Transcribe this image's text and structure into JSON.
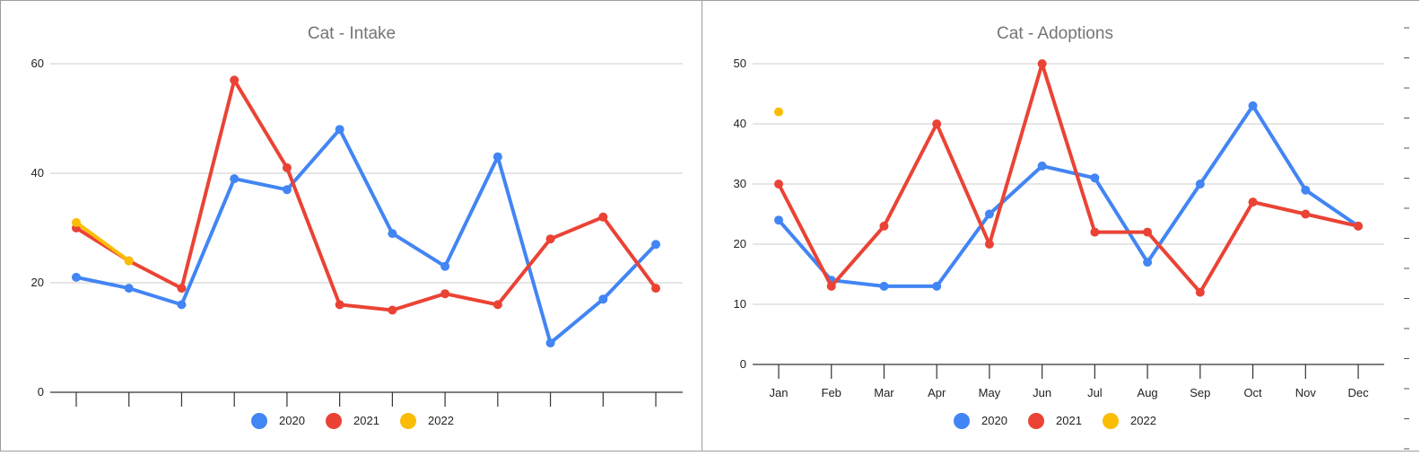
{
  "colors": {
    "2020": "#4285f4",
    "2021": "#ea4335",
    "2022": "#fbbc04"
  },
  "chart_data": [
    {
      "type": "line",
      "title": "Cat - Intake",
      "categories": [
        "",
        "",
        "",
        "",
        "",
        "",
        "",
        "",
        "",
        "",
        "",
        ""
      ],
      "ylim": [
        0,
        60
      ],
      "yticks": [
        0,
        20,
        40,
        60
      ],
      "grid": true,
      "legend": "bottom",
      "series": [
        {
          "name": "2020",
          "values": [
            21,
            19,
            16,
            39,
            37,
            48,
            29,
            23,
            43,
            9,
            17,
            27
          ]
        },
        {
          "name": "2021",
          "values": [
            30,
            24,
            19,
            57,
            41,
            16,
            15,
            18,
            16,
            28,
            32,
            19
          ]
        },
        {
          "name": "2022",
          "values": [
            31,
            24,
            null,
            null,
            null,
            null,
            null,
            null,
            null,
            null,
            null,
            null
          ]
        }
      ]
    },
    {
      "type": "line",
      "title": "Cat - Adoptions",
      "categories": [
        "Jan",
        "Feb",
        "Mar",
        "Apr",
        "May",
        "Jun",
        "Jul",
        "Aug",
        "Sep",
        "Oct",
        "Nov",
        "Dec"
      ],
      "ylim": [
        0,
        50
      ],
      "yticks": [
        0,
        10,
        20,
        30,
        40,
        50
      ],
      "grid": true,
      "legend": "bottom",
      "series": [
        {
          "name": "2020",
          "values": [
            24,
            14,
            13,
            13,
            25,
            33,
            31,
            17,
            30,
            43,
            29,
            23
          ]
        },
        {
          "name": "2021",
          "values": [
            30,
            13,
            23,
            40,
            20,
            50,
            22,
            22,
            12,
            27,
            25,
            23
          ]
        },
        {
          "name": "2022",
          "values": [
            42,
            null,
            null,
            null,
            null,
            null,
            null,
            null,
            null,
            null,
            null,
            null
          ]
        }
      ]
    }
  ]
}
